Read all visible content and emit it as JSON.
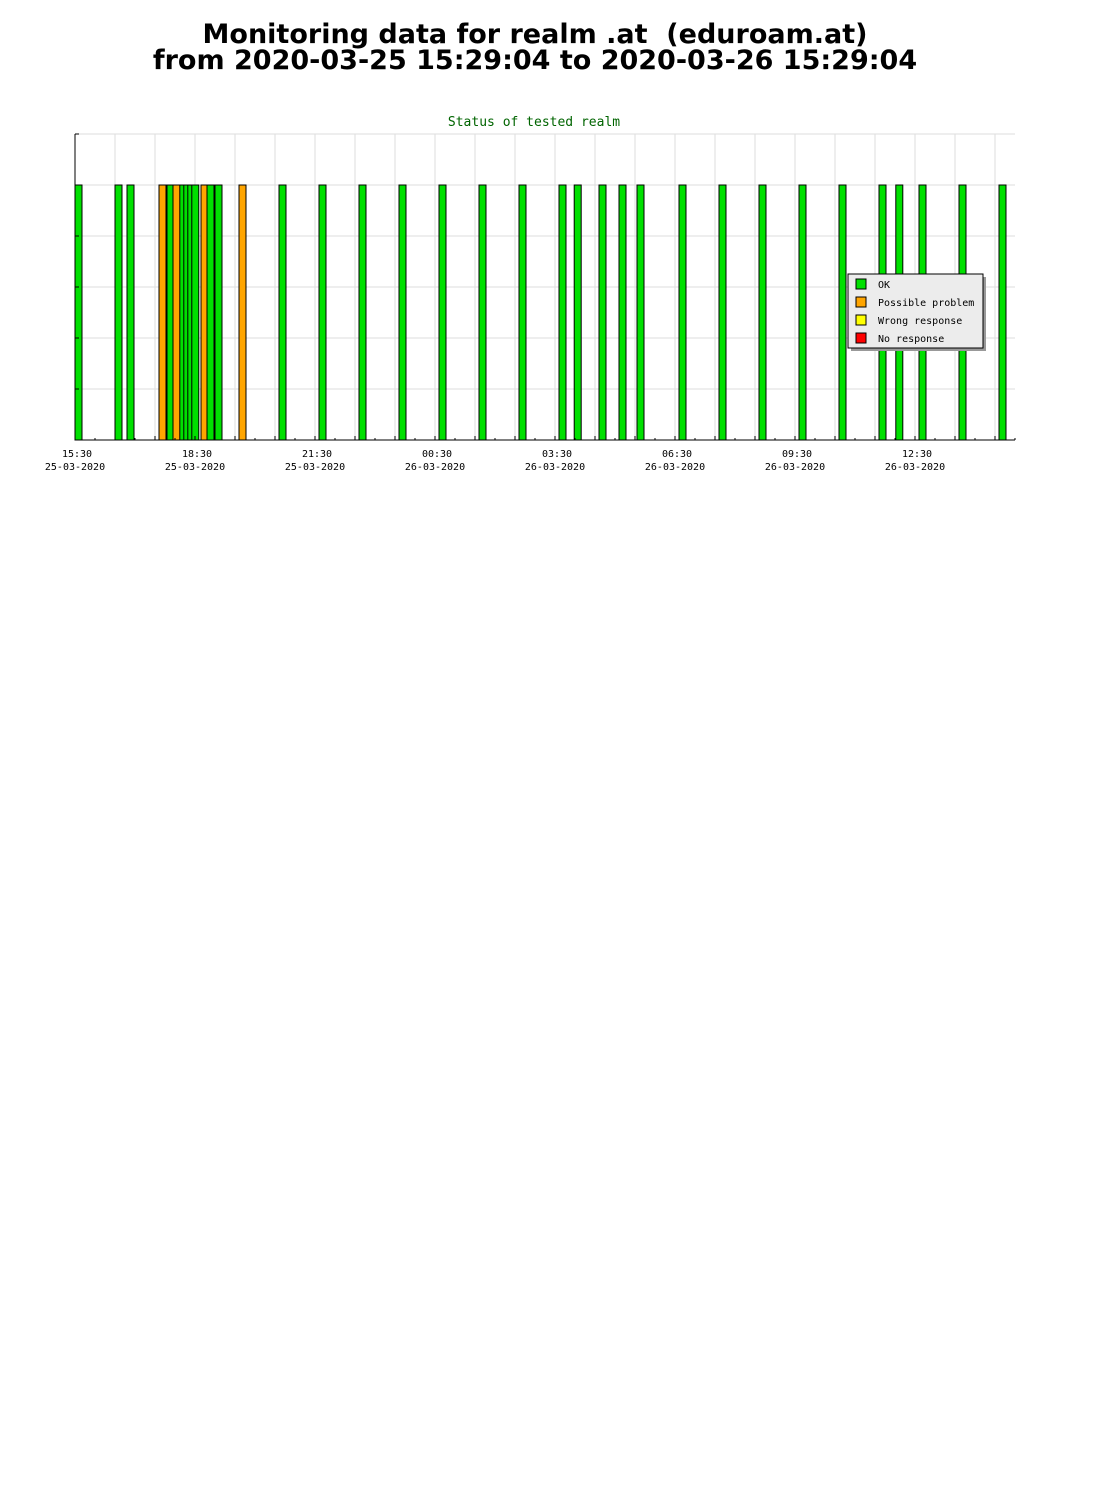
{
  "page": {
    "title_line1": "Monitoring data for realm .at  (eduroam.at)",
    "title_line2": "from 2020-03-25 15:29:04 to 2020-03-26 15:29:04"
  },
  "colors": {
    "ok": "#00e000",
    "possible_problem": "#ffa500",
    "wrong_response": "#ffff00",
    "no_response": "#ff0000",
    "title_text": "#006400",
    "grid": "#dddddd",
    "legend_bg": "#ececec"
  },
  "chart_data": {
    "type": "bar",
    "title": "Status of tested realm",
    "x_unit": "hours since 2020-03-25 15:30",
    "xlim": [
      0,
      23.5
    ],
    "ylim": [
      0,
      6
    ],
    "bar_value": 5,
    "grid": true,
    "legend_position": "right",
    "x_ticks": [
      {
        "x": 0,
        "time": "15:30",
        "date": "25-03-2020"
      },
      {
        "x": 3,
        "time": "18:30",
        "date": "25-03-2020"
      },
      {
        "x": 6,
        "time": "21:30",
        "date": "25-03-2020"
      },
      {
        "x": 9,
        "time": "00:30",
        "date": "26-03-2020"
      },
      {
        "x": 12,
        "time": "03:30",
        "date": "26-03-2020"
      },
      {
        "x": 15,
        "time": "06:30",
        "date": "26-03-2020"
      },
      {
        "x": 18,
        "time": "09:30",
        "date": "26-03-2020"
      },
      {
        "x": 21,
        "time": "12:30",
        "date": "26-03-2020"
      }
    ],
    "legend": [
      {
        "key": "ok",
        "label": "OK"
      },
      {
        "key": "possible_problem",
        "label": "Possible problem"
      },
      {
        "key": "wrong_response",
        "label": "Wrong response"
      },
      {
        "key": "no_response",
        "label": "No response"
      }
    ],
    "bars": [
      {
        "x": 0.0,
        "status": "ok"
      },
      {
        "x": 1.0,
        "status": "ok"
      },
      {
        "x": 1.3,
        "status": "ok"
      },
      {
        "x": 2.1,
        "status": "possible_problem"
      },
      {
        "x": 2.3,
        "status": "ok"
      },
      {
        "x": 2.45,
        "status": "possible_problem"
      },
      {
        "x": 2.62,
        "status": "ok"
      },
      {
        "x": 2.72,
        "status": "ok"
      },
      {
        "x": 2.82,
        "status": "ok"
      },
      {
        "x": 2.92,
        "status": "ok"
      },
      {
        "x": 3.15,
        "status": "possible_problem"
      },
      {
        "x": 3.3,
        "status": "ok"
      },
      {
        "x": 3.5,
        "status": "ok"
      },
      {
        "x": 4.1,
        "status": "possible_problem"
      },
      {
        "x": 5.1,
        "status": "ok"
      },
      {
        "x": 6.1,
        "status": "ok"
      },
      {
        "x": 7.1,
        "status": "ok"
      },
      {
        "x": 8.1,
        "status": "ok"
      },
      {
        "x": 9.1,
        "status": "ok"
      },
      {
        "x": 10.1,
        "status": "ok"
      },
      {
        "x": 11.1,
        "status": "ok"
      },
      {
        "x": 12.1,
        "status": "ok"
      },
      {
        "x": 12.48,
        "status": "ok"
      },
      {
        "x": 13.1,
        "status": "ok"
      },
      {
        "x": 13.6,
        "status": "ok"
      },
      {
        "x": 14.05,
        "status": "ok"
      },
      {
        "x": 15.1,
        "status": "ok"
      },
      {
        "x": 16.1,
        "status": "ok"
      },
      {
        "x": 17.1,
        "status": "ok"
      },
      {
        "x": 18.1,
        "status": "ok"
      },
      {
        "x": 19.1,
        "status": "ok"
      },
      {
        "x": 20.1,
        "status": "ok"
      },
      {
        "x": 20.52,
        "status": "ok"
      },
      {
        "x": 21.1,
        "status": "ok"
      },
      {
        "x": 22.1,
        "status": "ok"
      },
      {
        "x": 23.1,
        "status": "ok"
      }
    ]
  }
}
